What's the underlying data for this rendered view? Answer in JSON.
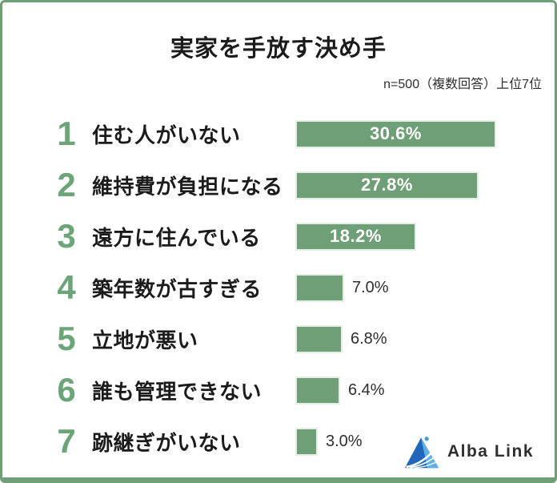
{
  "frame": {
    "border_color": "#6f9f76",
    "background": "#ffffff"
  },
  "header": {
    "title": "実家を手放す決め手",
    "note": "n=500（複数回答）上位7位"
  },
  "chart_data": {
    "type": "bar",
    "orientation": "horizontal",
    "title": "実家を手放す決め手",
    "subtitle": "n=500（複数回答）上位7位",
    "unit": "%",
    "ranks": [
      1,
      2,
      3,
      4,
      5,
      6,
      7
    ],
    "categories": [
      "住む人がいない",
      "維持費が負担になる",
      "遠方に住んでいる",
      "築年数が古すぎる",
      "立地が悪い",
      "誰も管理できない",
      "跡継ぎがいない"
    ],
    "values": [
      30.6,
      27.8,
      18.2,
      7.0,
      6.8,
      6.4,
      3.0
    ],
    "labels": [
      "30.6%",
      "27.8%",
      "18.2%",
      "7.0%",
      "6.8%",
      "6.4%",
      "3.0%"
    ],
    "bar_color": "#6f9f76",
    "rank_color": "#6ca678",
    "inside_label_color": "#ffffff",
    "outside_label_color": "#2e2e2e",
    "xlim": [
      0,
      34
    ],
    "grid": false,
    "legend": false
  },
  "logo": {
    "text": "Alba Link",
    "icon": "alba-link-triangle-logo",
    "colors": {
      "dark_blue": "#2166b8",
      "light_blue": "#5fb0e4",
      "mid_blue": "#4a9bd8",
      "text": "#2f2f2f"
    }
  }
}
